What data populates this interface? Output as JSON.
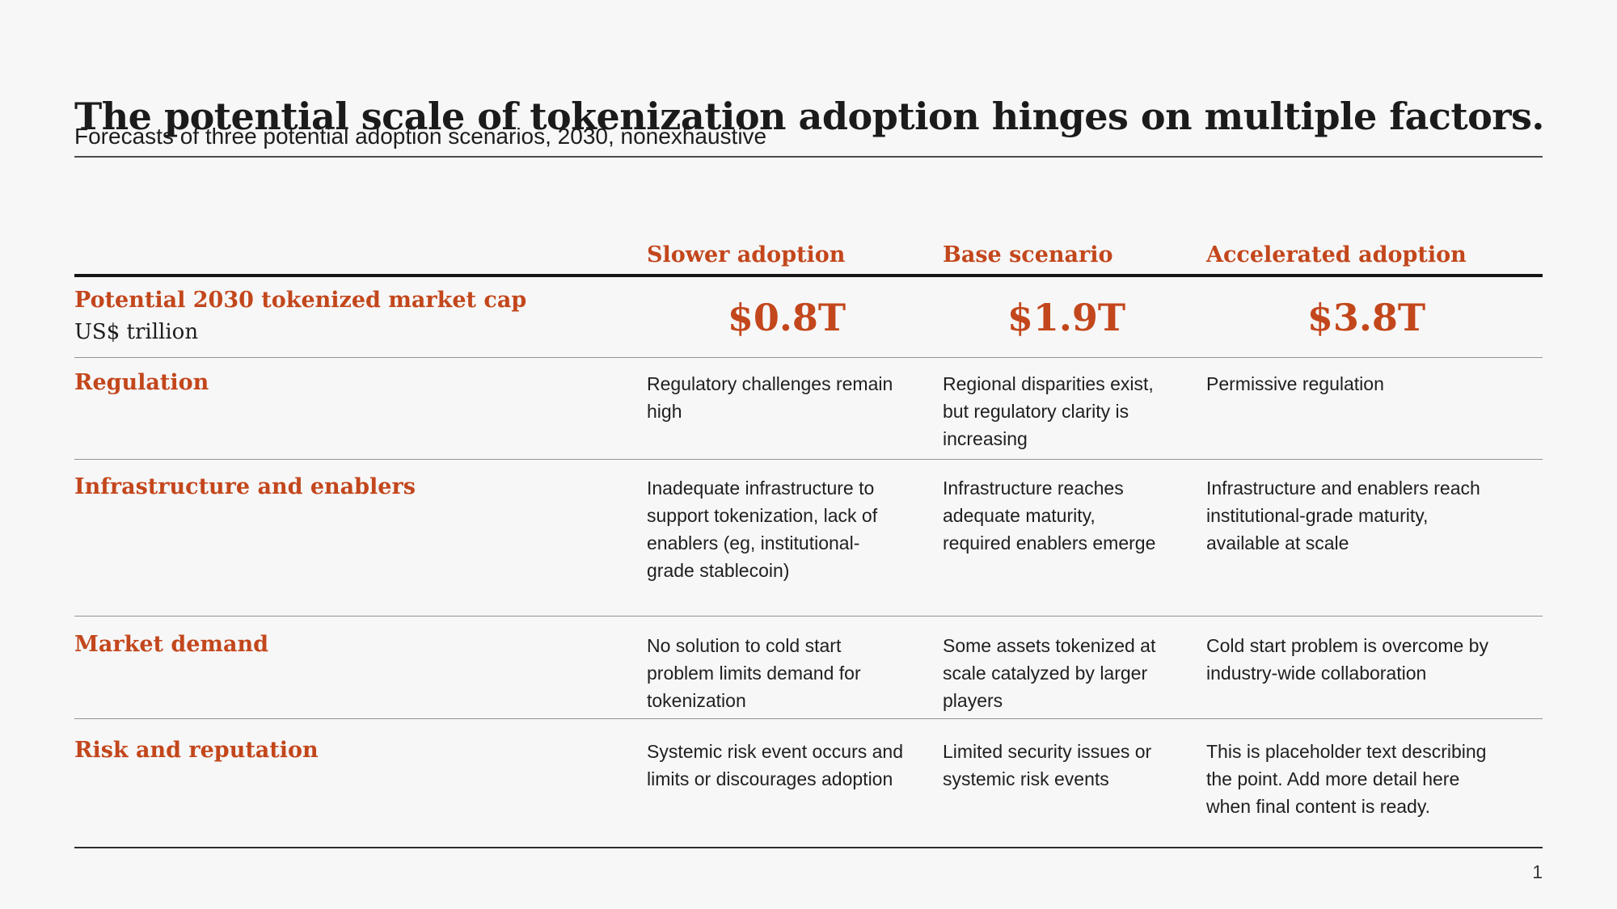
{
  "slide": {
    "title": "The potential scale of tokenization adoption hinges on multiple factors.",
    "subtitle": "Forecasts of three potential adoption scenarios, 2030, nonexhaustive",
    "page_number": "1"
  },
  "colors": {
    "accent_orange": "#C3471C",
    "background": "#F7F7F8",
    "text": "#1E1E1E",
    "thin_rule": "#939393",
    "thick_rule": "#161616"
  },
  "table": {
    "scenario_headers": [
      "Slower adoption",
      "Base scenario",
      "Accelerated adoption"
    ],
    "market_cap": {
      "label": "Potential 2030 tokenized market cap",
      "sublabel": "US$ trillion",
      "values": [
        "$0.8T",
        "$1.9T",
        "$3.8T"
      ]
    },
    "rows": [
      {
        "label": "Regulation",
        "cells": [
          "Regulatory challenges remain\nhigh",
          "Regional disparities exist,\nbut regulatory clarity is\nincreasing",
          "Permissive regulation"
        ]
      },
      {
        "label": "Infrastructure and enablers",
        "cells": [
          "Inadequate infrastructure to\nsupport tokenization, lack of\nenablers (eg, institutional-\ngrade stablecoin)",
          "Infrastructure reaches\nadequate maturity,\nrequired enablers emerge",
          "Infrastructure and enablers reach\ninstitutional-grade maturity,\navailable at scale"
        ]
      },
      {
        "label": "Market demand",
        "cells": [
          "No solution to cold start\nproblem limits demand for\ntokenization",
          "Some assets tokenized at\nscale catalyzed by larger\nplayers",
          "Cold start problem is overcome by\nindustry-wide collaboration"
        ]
      },
      {
        "label": "Risk and reputation",
        "cells": [
          "Systemic risk event occurs and\nlimits or discourages adoption",
          "Limited security issues or\nsystemic risk events",
          "This is placeholder text describing\nthe point. Add more detail here\nwhen final content is ready."
        ]
      }
    ]
  }
}
